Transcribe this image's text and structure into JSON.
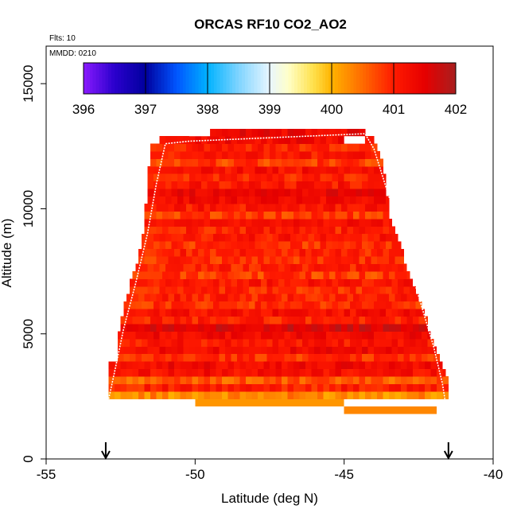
{
  "chart_data": {
    "type": "heatmap",
    "title": "ORCAS RF10 CO2_AO2",
    "annotations": {
      "flights": "Flts: 10",
      "date": "MMDD: 0210"
    },
    "xlabel": "Latitude (deg N)",
    "ylabel": "Altitude (m)",
    "xlim": [
      -55,
      -40
    ],
    "ylim": [
      0,
      16500
    ],
    "x_ticks": [
      -55,
      -50,
      -45,
      -40
    ],
    "x_tick_labels": [
      "-55",
      "-50",
      "-45",
      "-40"
    ],
    "y_ticks": [
      0,
      5000,
      10000,
      15000
    ],
    "y_tick_labels": [
      "0",
      "5000",
      "10000",
      "15000"
    ],
    "colorbar": {
      "min": 396,
      "max": 402,
      "ticks": [
        396,
        397,
        398,
        399,
        400,
        401,
        402
      ],
      "tick_labels": [
        "396",
        "397",
        "398",
        "399",
        "400",
        "401",
        "402"
      ],
      "stops": [
        {
          "value": 396.0,
          "color": "#8a1aff"
        },
        {
          "value": 396.5,
          "color": "#2a00cc"
        },
        {
          "value": 397.0,
          "color": "#00009e"
        },
        {
          "value": 397.5,
          "color": "#0055ff"
        },
        {
          "value": 398.0,
          "color": "#00b2ff"
        },
        {
          "value": 398.5,
          "color": "#7fd4ff"
        },
        {
          "value": 399.0,
          "color": "#e8f6ff"
        },
        {
          "value": 399.3,
          "color": "#ffffc8"
        },
        {
          "value": 399.7,
          "color": "#ffe14d"
        },
        {
          "value": 400.0,
          "color": "#ffb300"
        },
        {
          "value": 400.5,
          "color": "#ff6a00"
        },
        {
          "value": 401.0,
          "color": "#ff1a00"
        },
        {
          "value": 401.5,
          "color": "#e60000"
        },
        {
          "value": 402.0,
          "color": "#a81e1e"
        }
      ]
    },
    "curtain": {
      "bin_height_m": 300,
      "cell_width_deg": 0.2,
      "layers": [
        {
          "alt": 2400,
          "lat_min": -52.9,
          "lat_max": -41.5,
          "value": 400.3
        },
        {
          "alt": 2700,
          "lat_min": -52.9,
          "lat_max": -41.5,
          "value": 401.0
        },
        {
          "alt": 3000,
          "lat_min": -52.9,
          "lat_max": -41.5,
          "value": 400.6
        },
        {
          "alt": 3300,
          "lat_min": -52.9,
          "lat_max": -41.6,
          "value": 401.2
        },
        {
          "alt": 3600,
          "lat_min": -52.9,
          "lat_max": -41.7,
          "value": 401.3
        },
        {
          "alt": 3900,
          "lat_min": -52.6,
          "lat_max": -41.8,
          "value": 400.9
        },
        {
          "alt": 4200,
          "lat_min": -52.6,
          "lat_max": -41.9,
          "value": 401.3
        },
        {
          "alt": 4500,
          "lat_min": -52.6,
          "lat_max": -42.0,
          "value": 401.1
        },
        {
          "alt": 4800,
          "lat_min": -52.6,
          "lat_max": -42.1,
          "value": 401.3
        },
        {
          "alt": 5100,
          "lat_min": -52.5,
          "lat_max": -42.2,
          "value": 401.6
        },
        {
          "alt": 5400,
          "lat_min": -52.5,
          "lat_max": -42.2,
          "value": 401.0
        },
        {
          "alt": 5700,
          "lat_min": -52.4,
          "lat_max": -42.3,
          "value": 401.2
        },
        {
          "alt": 6000,
          "lat_min": -52.4,
          "lat_max": -42.4,
          "value": 400.9
        },
        {
          "alt": 6300,
          "lat_min": -52.3,
          "lat_max": -42.5,
          "value": 401.0
        },
        {
          "alt": 6600,
          "lat_min": -52.2,
          "lat_max": -42.6,
          "value": 400.9
        },
        {
          "alt": 6900,
          "lat_min": -52.2,
          "lat_max": -42.7,
          "value": 401.1
        },
        {
          "alt": 7200,
          "lat_min": -52.1,
          "lat_max": -42.8,
          "value": 400.8
        },
        {
          "alt": 7500,
          "lat_min": -52.0,
          "lat_max": -42.9,
          "value": 401.0
        },
        {
          "alt": 7800,
          "lat_min": -51.9,
          "lat_max": -43.0,
          "value": 400.9
        },
        {
          "alt": 8100,
          "lat_min": -51.9,
          "lat_max": -43.0,
          "value": 401.0
        },
        {
          "alt": 8400,
          "lat_min": -51.8,
          "lat_max": -43.1,
          "value": 400.9
        },
        {
          "alt": 8700,
          "lat_min": -51.8,
          "lat_max": -43.2,
          "value": 401.1
        },
        {
          "alt": 9000,
          "lat_min": -51.7,
          "lat_max": -43.3,
          "value": 401.0
        },
        {
          "alt": 9300,
          "lat_min": -51.7,
          "lat_max": -43.4,
          "value": 401.2
        },
        {
          "alt": 9600,
          "lat_min": -51.7,
          "lat_max": -43.5,
          "value": 400.8
        },
        {
          "alt": 9900,
          "lat_min": -51.7,
          "lat_max": -43.5,
          "value": 401.1
        },
        {
          "alt": 10200,
          "lat_min": -51.6,
          "lat_max": -43.5,
          "value": 401.3
        },
        {
          "alt": 10500,
          "lat_min": -51.6,
          "lat_max": -43.6,
          "value": 401.4
        },
        {
          "alt": 10800,
          "lat_min": -51.6,
          "lat_max": -43.6,
          "value": 401.1
        },
        {
          "alt": 11100,
          "lat_min": -51.6,
          "lat_max": -43.6,
          "value": 401.0
        },
        {
          "alt": 11400,
          "lat_min": -51.6,
          "lat_max": -43.7,
          "value": 401.2
        },
        {
          "alt": 11700,
          "lat_min": -51.5,
          "lat_max": -43.7,
          "value": 400.8
        },
        {
          "alt": 12000,
          "lat_min": -51.5,
          "lat_max": -43.8,
          "value": 401.1
        },
        {
          "alt": 12300,
          "lat_min": -51.5,
          "lat_max": -43.9,
          "value": 401.0
        },
        {
          "alt": 12600,
          "lat_min": -51.2,
          "lat_max": -44.0,
          "value": 401.3
        },
        {
          "alt": 12900,
          "lat_min": -49.5,
          "lat_max": -44.3,
          "value": 401.4
        }
      ],
      "gaps": [
        {
          "alt": 12600,
          "lat_min": -45.0,
          "lat_max": -44.3
        },
        {
          "alt": 12900,
          "lat_min": -50.2,
          "lat_max": -49.5
        }
      ],
      "missing_bottom": [
        {
          "alt": 2100,
          "lat_min": -50.0,
          "lat_max": -45.0,
          "value": 400.2
        },
        {
          "alt": 1800,
          "lat_min": -45.0,
          "lat_max": -41.9,
          "value": 400.3
        }
      ]
    },
    "flight_track": [
      [
        -52.9,
        2400
      ],
      [
        -52.7,
        3500
      ],
      [
        -52.4,
        5200
      ],
      [
        -52.0,
        7000
      ],
      [
        -51.6,
        9000
      ],
      [
        -51.3,
        11000
      ],
      [
        -51.0,
        12600
      ],
      [
        -50.2,
        12700
      ],
      [
        -44.3,
        13000
      ],
      [
        -44.0,
        12400
      ],
      [
        -43.5,
        10500
      ],
      [
        -43.0,
        8500
      ],
      [
        -42.5,
        6500
      ],
      [
        -42.0,
        4500
      ],
      [
        -41.7,
        3000
      ],
      [
        -41.5,
        1500
      ]
    ],
    "markers": [
      {
        "lat": -53.0,
        "label": "arrow"
      },
      {
        "lat": -41.5,
        "label": "arrow"
      }
    ]
  }
}
